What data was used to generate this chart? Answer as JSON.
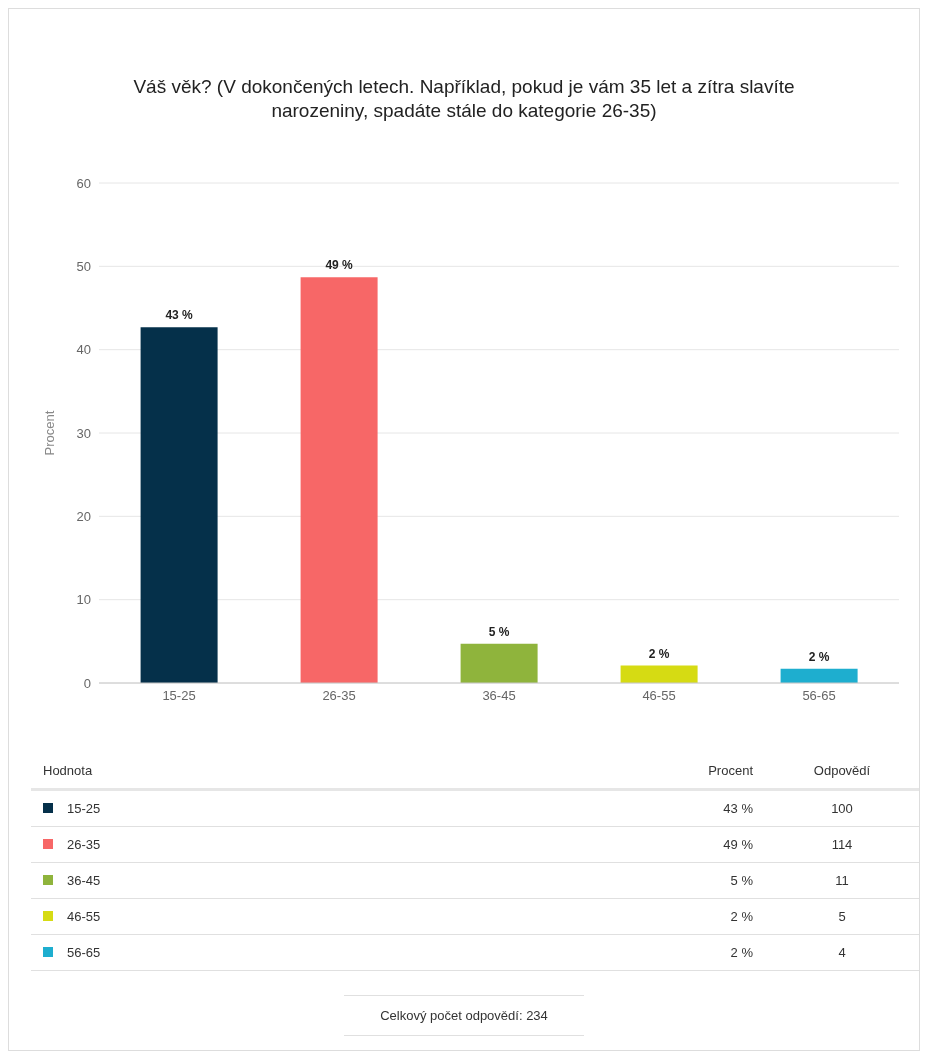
{
  "chart_data": {
    "type": "bar",
    "title": "Váš věk? (V dokončených letech. Například, pokud je vám 35 let a zítra slavíte narozeniny, spadáte stále do kategorie 26-35)",
    "ylabel": "Procent",
    "categories": [
      "15-25",
      "26-35",
      "36-45",
      "46-55",
      "56-65"
    ],
    "values": [
      42.7,
      48.7,
      4.7,
      2.1,
      1.7
    ],
    "colors": [
      "#05304a",
      "#f76767",
      "#8fb43c",
      "#d6db13",
      "#1eaecf"
    ],
    "value_labels": [
      "43 %",
      "49 %",
      "5 %",
      "2 %",
      "2 %"
    ],
    "ylim": [
      0,
      60
    ],
    "yticks": [
      0,
      10,
      20,
      30,
      40,
      50,
      60
    ],
    "grid": "y",
    "annotations": [
      "Hodnota",
      "Procent",
      "Odpovědí",
      "100",
      "114",
      "11",
      "5",
      "4",
      "Celkový počet odpovědí: 234"
    ]
  }
}
